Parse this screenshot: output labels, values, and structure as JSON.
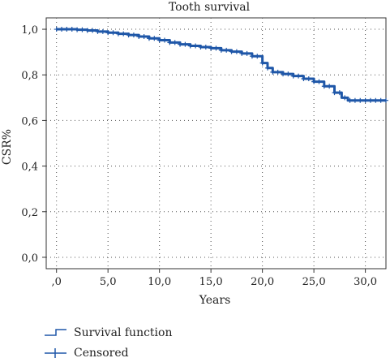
{
  "chart_data": {
    "type": "line",
    "title": "Tooth survival",
    "xlabel": "Years",
    "ylabel": "CSR%",
    "xlim": [
      -1,
      32
    ],
    "ylim": [
      -0.05,
      1.05
    ],
    "x_ticks": [
      0,
      5,
      10,
      15,
      20,
      25,
      30
    ],
    "x_tick_labels": [
      ",0",
      "5,0",
      "10,0",
      "15,0",
      "20,0",
      "25,0",
      "30,0"
    ],
    "y_ticks": [
      0,
      0.2,
      0.4,
      0.6,
      0.8,
      1.0
    ],
    "y_tick_labels": [
      "0,0",
      "0,2",
      "0,4",
      "0,6",
      "0,8",
      "1,0"
    ],
    "grid": "dotted",
    "legend": [
      {
        "label": "Survival function",
        "symbol": "step"
      },
      {
        "label": "Censored",
        "symbol": "plus"
      }
    ],
    "series": [
      {
        "name": "Survival function",
        "color": "#1f57a8",
        "x": [
          0,
          1,
          2,
          3,
          4,
          5,
          6,
          7,
          8,
          9,
          10,
          11,
          12,
          13,
          14,
          15,
          16,
          17,
          18,
          19,
          20,
          20.5,
          21,
          22,
          23,
          24,
          25,
          26,
          27,
          27.7,
          28.3,
          29,
          30,
          31,
          32
        ],
        "y": [
          1.0,
          1.0,
          0.998,
          0.995,
          0.99,
          0.985,
          0.98,
          0.975,
          0.968,
          0.96,
          0.952,
          0.942,
          0.934,
          0.927,
          0.922,
          0.917,
          0.908,
          0.902,
          0.894,
          0.882,
          0.852,
          0.83,
          0.812,
          0.804,
          0.795,
          0.783,
          0.77,
          0.75,
          0.722,
          0.7,
          0.688,
          0.688,
          0.688,
          0.688,
          0.688
        ]
      }
    ]
  }
}
